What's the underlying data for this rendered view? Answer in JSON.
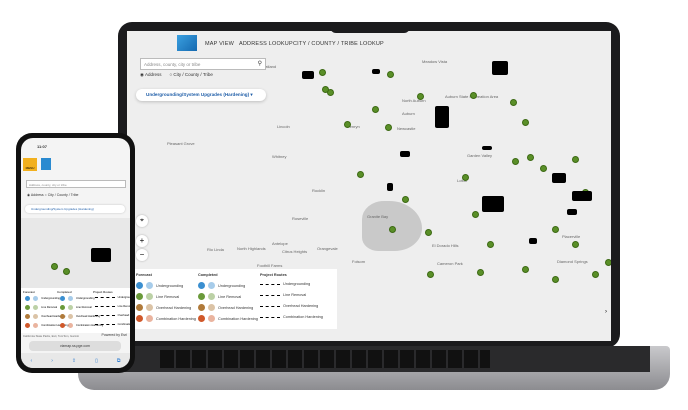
{
  "nav": {
    "items": [
      "MAP VIEW",
      "ADDRESS LOOKUP",
      "CITY / COUNTY / TRIBE LOOKUP"
    ]
  },
  "search": {
    "placeholder": "Address, county, city or tribe",
    "radio_address": "Address",
    "radio_city": "City / County / Tribe"
  },
  "layer_dropdown": {
    "label": "Undergrounding/System Upgrades (Hardening)"
  },
  "map": {
    "labels": [
      "Wheatland",
      "Meadow Vista",
      "North Auburn",
      "Auburn",
      "Auburn State Recreation Area",
      "Newcastle",
      "Lincoln",
      "Penryn",
      "Whitney",
      "Pleasant Grove",
      "Rocklin",
      "Granite Bay",
      "Roseville",
      "Antelope",
      "Rio Linda",
      "North Highlands",
      "Citrus Heights",
      "Foothill Farms",
      "Orangevale",
      "Folsom",
      "Garden Valley",
      "Lotus",
      "Placerville",
      "Diamond Springs",
      "Cameron Park",
      "El Dorado Hills"
    ],
    "colors": {
      "completed_marker": "#5a8f28",
      "project_route": "#000000",
      "water": "#c9c9c9"
    }
  },
  "legend": {
    "forecast": "Forecast",
    "completed": "Completed",
    "routes": "Project Routes",
    "rows": [
      {
        "label": "Undergrounding",
        "color": "#3b8fd0"
      },
      {
        "label": "Line Removal",
        "color": "#6a9a3a"
      },
      {
        "label": "Overhead Hardening",
        "color": "#b07a3a"
      },
      {
        "label": "Combination Hardening",
        "color": "#d0582a"
      }
    ]
  },
  "phone": {
    "time": "11:07",
    "menu": "MENU",
    "url": "vizmap.ss.pge.com",
    "powered": "Powered by Esri",
    "attribution": "California State Parks, Esri, TomTom, Garmin"
  }
}
